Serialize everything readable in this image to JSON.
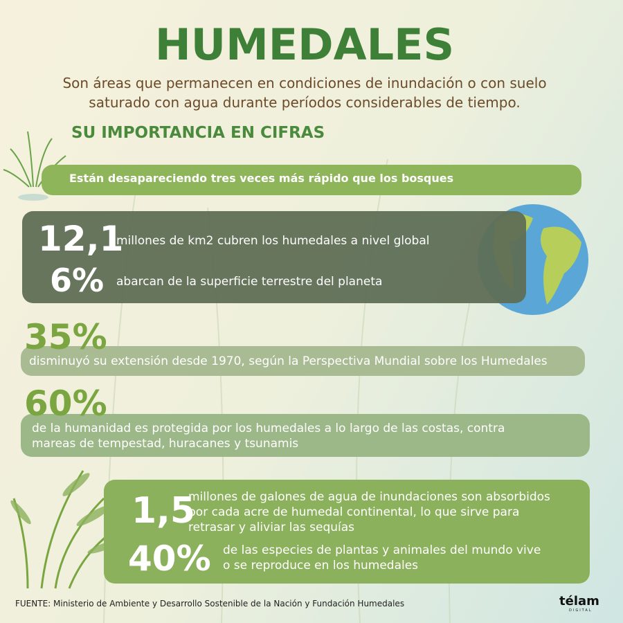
{
  "header": {
    "title": "HUMEDALES",
    "subtitle": [
      "Son áreas que permanecen en condiciones de inundación o con suelo",
      "saturado con agua durante períodos considerables de tiempo."
    ],
    "section": "SU IMPORTANCIA EN CIFRAS"
  },
  "banner": "Están desapareciendo tres veces más rápido que los bosques",
  "stats": [
    {
      "figure": "12,1",
      "lines": [
        "millones de km2 cubren los humedales a nivel global"
      ]
    },
    {
      "figure": "6%",
      "lines": [
        "abarcan de la superficie terrestre del planeta"
      ]
    },
    {
      "figure": "35%",
      "lines": [
        "disminuyó su extensión desde 1970, según la Perspectiva Mundial sobre los Humedales"
      ]
    },
    {
      "figure": "60%",
      "lines": [
        "de la humanidad es protegida por los humedales a lo largo de las costas, contra",
        "mareas de tempestad, huracanes y tsunamis"
      ]
    },
    {
      "figure": "1,5",
      "lines": [
        "millones de galones de agua de inundaciones son absorbidos",
        "por cada acre de humedal continental,  lo que sirve para",
        "retrasar y aliviar las sequías"
      ]
    },
    {
      "figure": "40%",
      "lines": [
        "de las especies de plantas y animales del mundo vive",
        "o se reproduce en los humedales"
      ]
    }
  ],
  "footer": {
    "source": "FUENTE: Ministerio de Ambiente y Desarrollo Sostenible de la Nación y Fundación Humedales",
    "logo": "télam",
    "logo_sub": "DIGITAL"
  }
}
